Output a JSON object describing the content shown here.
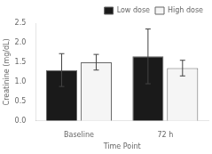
{
  "chart_data": {
    "type": "bar",
    "categories": [
      "Baseline",
      "72 h"
    ],
    "series": [
      {
        "name": "Low dose",
        "color": "#1a1a1a",
        "values": [
          1.3,
          1.65
        ],
        "errors": [
          0.42,
          0.7
        ]
      },
      {
        "name": "High dose",
        "color": "#f5f5f5",
        "values": [
          1.5,
          1.35
        ],
        "errors": [
          0.2,
          0.2
        ]
      }
    ],
    "xlabel": "Time Point",
    "ylabel": "Creatinine (mg/dL)",
    "ylim": [
      0.0,
      2.5
    ],
    "yticks": [
      {
        "value": 0,
        "label": "0.0"
      },
      0.5,
      {
        "value": 1,
        "label": "1.0"
      },
      1.5,
      {
        "value": 2,
        "label": "2.0"
      },
      2.5
    ],
    "legend": "upper right",
    "grid": false
  }
}
